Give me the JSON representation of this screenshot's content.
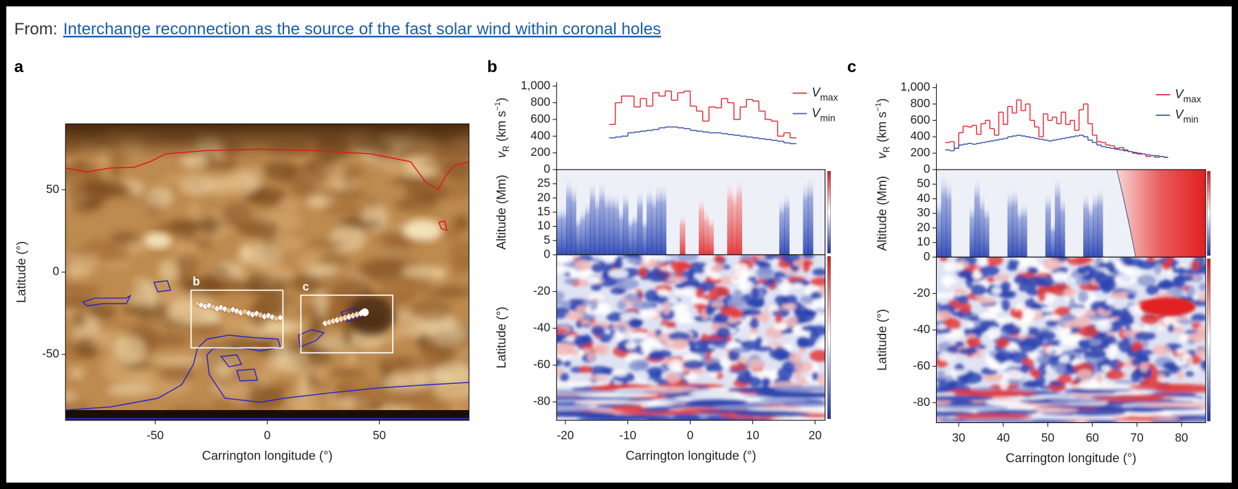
{
  "header": {
    "prefix": "From:",
    "link": "Interchange reconnection as the source of the fast solar wind within coronal holes"
  },
  "chart_data": [
    {
      "type": "image",
      "panel": "a",
      "xlabel": "Carrington longitude (°)",
      "ylabel": "Latitude  (°)",
      "xlim": [
        -90,
        90
      ],
      "ylim": [
        -90,
        90
      ],
      "xticks": [
        -50,
        0,
        50
      ],
      "yticks": [
        -50,
        0,
        50
      ],
      "boxes": [
        {
          "label": "b",
          "x": [
            -34,
            7
          ],
          "y": [
            -46,
            -11
          ]
        },
        {
          "label": "c",
          "x": [
            15,
            56
          ],
          "y": [
            -49,
            -14
          ]
        }
      ]
    },
    {
      "type": "step",
      "panel": "b",
      "xlabel": "Carrington longitude (°)",
      "xlim": [
        -21.4,
        21.6
      ],
      "xticks": [
        -20,
        -10,
        0,
        10,
        20
      ],
      "ylabel": {
        "symbol": "v",
        "sub": "R",
        "text": "(km s",
        "sup": "−1",
        "end": ")"
      },
      "ylim": [
        0,
        1000
      ],
      "yticks": [
        0,
        200,
        400,
        600,
        800,
        {
          "value": 1000,
          "label": "1,000"
        }
      ],
      "legend": "upper right",
      "x": [
        -13,
        -12,
        -11,
        -10,
        -9,
        -8,
        -7,
        -6,
        -5,
        -4,
        -3,
        -2,
        -1,
        0,
        1,
        2,
        3,
        4,
        5,
        6,
        7,
        8,
        9,
        10,
        11,
        12,
        13,
        14,
        15,
        16
      ],
      "series": [
        {
          "name": "V",
          "sub": "max",
          "color": "#e0303a",
          "values": [
            540,
            800,
            880,
            880,
            750,
            850,
            760,
            920,
            880,
            940,
            830,
            920,
            940,
            760,
            700,
            580,
            750,
            740,
            850,
            800,
            600,
            750,
            840,
            820,
            700,
            600,
            580,
            400,
            440,
            380
          ]
        },
        {
          "name": "V",
          "sub": "min",
          "color": "#3a56a8",
          "values": [
            380,
            390,
            400,
            440,
            450,
            460,
            470,
            480,
            500,
            510,
            510,
            500,
            490,
            470,
            460,
            450,
            440,
            440,
            430,
            420,
            410,
            400,
            390,
            380,
            370,
            360,
            350,
            340,
            320,
            310
          ]
        }
      ],
      "heatmaps": [
        {
          "ylabel": "Altitude (Mm)",
          "ylim": [
            0,
            30
          ],
          "yticks": [
            0,
            5,
            10,
            15,
            20,
            25
          ]
        },
        {
          "ylabel": "Latitude (°)",
          "ylim": [
            -90,
            0
          ],
          "yticks": [
            -80,
            -60,
            -40,
            -20
          ]
        }
      ]
    },
    {
      "type": "step",
      "panel": "c",
      "xlabel": "Carrington longitude (°)",
      "xlim": [
        25,
        85.4
      ],
      "xticks": [
        30,
        40,
        50,
        60,
        70,
        80
      ],
      "ylabel": {
        "symbol": "v",
        "sub": "R",
        "text": "(km s",
        "sup": "−1",
        "end": ")"
      },
      "ylim": [
        0,
        1000
      ],
      "yticks": [
        0,
        200,
        400,
        600,
        800,
        {
          "value": 1000,
          "label": "1,000"
        }
      ],
      "legend": "upper right",
      "x": [
        27,
        28,
        29,
        30,
        31,
        32,
        33,
        34,
        35,
        36,
        37,
        38,
        39,
        40,
        41,
        42,
        43,
        44,
        45,
        46,
        47,
        48,
        49,
        50,
        51,
        52,
        53,
        54,
        55,
        56,
        57,
        58,
        59,
        60,
        61,
        62,
        63,
        64,
        65,
        66,
        67,
        68,
        69,
        70,
        71,
        72,
        73,
        74,
        75,
        76
      ],
      "series": [
        {
          "name": "V",
          "sub": "max",
          "color": "#e0303a",
          "values": [
            330,
            340,
            260,
            450,
            530,
            520,
            540,
            430,
            560,
            600,
            500,
            420,
            700,
            550,
            770,
            690,
            850,
            720,
            800,
            600,
            520,
            400,
            680,
            600,
            640,
            560,
            700,
            550,
            600,
            480,
            730,
            800,
            560,
            420,
            340,
            330,
            300,
            290,
            260,
            270,
            240,
            220,
            200,
            190,
            190,
            160,
            170,
            150,
            160,
            150
          ]
        },
        {
          "name": "V",
          "sub": "min",
          "color": "#3a56a8",
          "values": [
            240,
            230,
            260,
            300,
            310,
            320,
            310,
            320,
            330,
            340,
            350,
            360,
            370,
            380,
            400,
            410,
            420,
            410,
            400,
            390,
            380,
            370,
            360,
            350,
            360,
            370,
            380,
            390,
            400,
            410,
            420,
            400,
            360,
            330,
            300,
            280,
            270,
            260,
            250,
            240,
            230,
            220,
            210,
            200,
            190,
            180,
            170,
            170,
            160,
            150
          ]
        }
      ],
      "heatmaps": [
        {
          "ylabel": "Altitude (Mm)",
          "ylim": [
            0,
            60
          ],
          "yticks": [
            0,
            10,
            20,
            30,
            40,
            50
          ]
        },
        {
          "ylabel": "Latitude (°)",
          "ylim": [
            -91,
            0
          ],
          "yticks": [
            -80,
            -60,
            -40,
            -20
          ]
        }
      ]
    }
  ]
}
